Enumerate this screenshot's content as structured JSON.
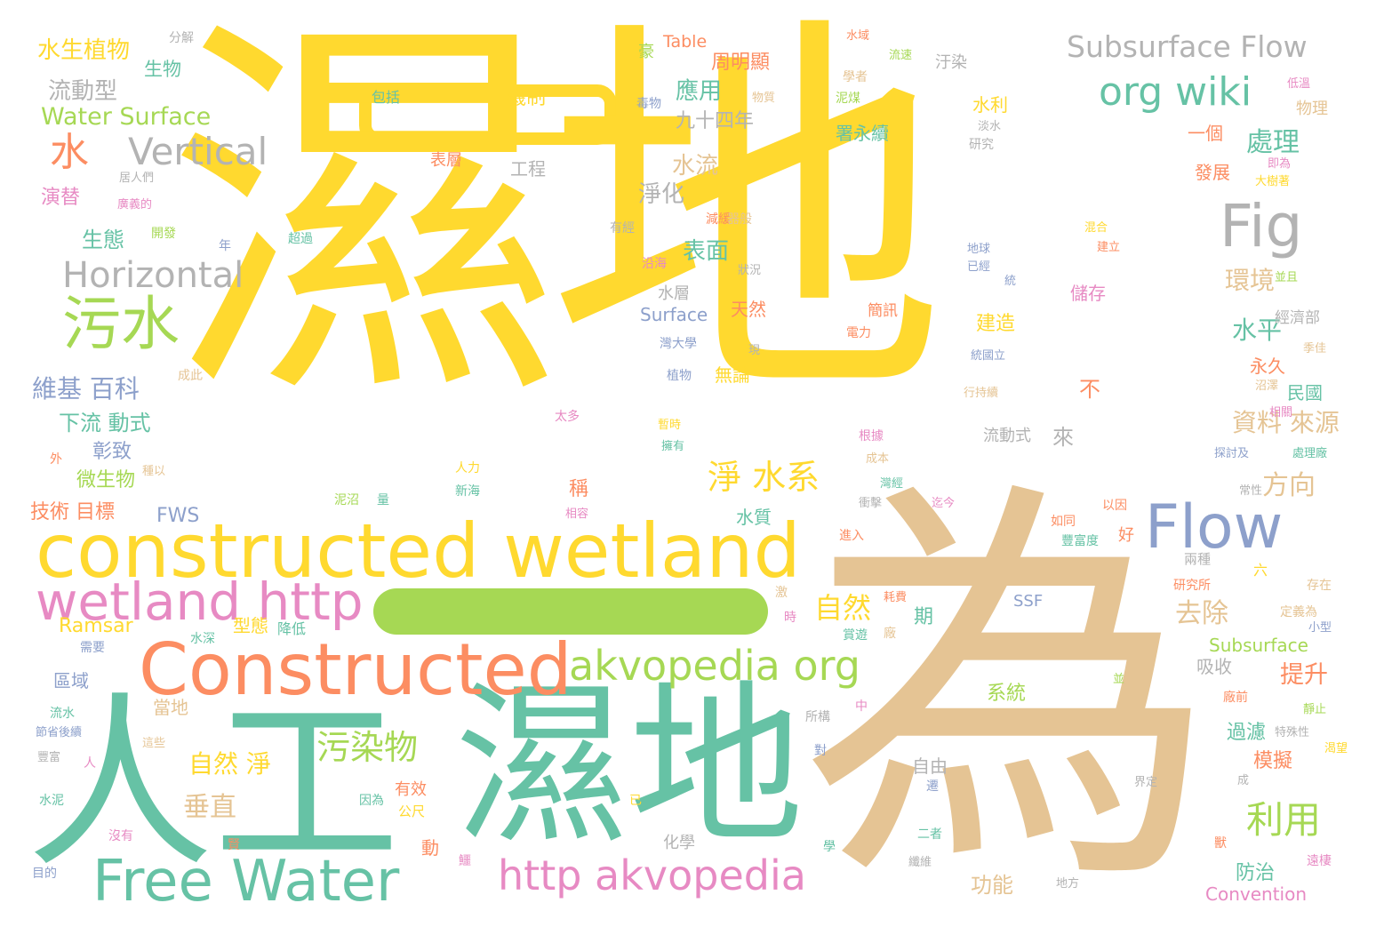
{
  "words": [
    {
      "text": "濕地",
      "color": "#ffd92f"
    },
    {
      "text": "為",
      "color": "#e5c494"
    },
    {
      "text": "人工",
      "color": "#66c2a5"
    },
    {
      "text": "濕地",
      "color": "#66c2a5"
    },
    {
      "text": "constructed wetland",
      "color": "#ffd92f"
    },
    {
      "text": "Constructed",
      "color": "#fc8d62"
    },
    {
      "text": "Free Water",
      "color": "#66c2a5"
    },
    {
      "text": "wetland http",
      "color": "#e78ac3"
    },
    {
      "text": "akvopedia org",
      "color": "#a6d854"
    },
    {
      "text": "http akvopedia",
      "color": "#e78ac3"
    },
    {
      "text": "Flow",
      "color": "#8da0cb"
    },
    {
      "text": "Fig",
      "color": "#b3b3b3"
    },
    {
      "text": "org wiki",
      "color": "#66c2a5"
    },
    {
      "text": "Subsurface Flow",
      "color": "#b3b3b3"
    },
    {
      "text": "污水",
      "color": "#a6d854"
    },
    {
      "text": "Vertical",
      "color": "#b3b3b3"
    },
    {
      "text": "Horizontal",
      "color": "#b3b3b3"
    },
    {
      "text": "水",
      "color": "#fc8d62"
    },
    {
      "text": "Water Surface",
      "color": "#a6d854"
    },
    {
      "text": "水生植物",
      "color": "#ffd92f"
    },
    {
      "text": "流動型",
      "color": "#b3b3b3"
    },
    {
      "text": "生物",
      "color": "#66c2a5"
    },
    {
      "text": "分解",
      "color": "#b3b3b3"
    },
    {
      "text": "維基 百科",
      "color": "#8da0cb"
    },
    {
      "text": "淨 水系",
      "color": "#ffd92f"
    },
    {
      "text": "污染物",
      "color": "#a6d854"
    },
    {
      "text": "自然 淨",
      "color": "#ffd92f"
    },
    {
      "text": "垂直",
      "color": "#e5c494"
    },
    {
      "text": "利用",
      "color": "#a6d854"
    },
    {
      "text": "自然",
      "color": "#ffd92f"
    },
    {
      "text": "方向",
      "color": "#e5c494"
    },
    {
      "text": "處理",
      "color": "#66c2a5"
    },
    {
      "text": "環境",
      "color": "#e5c494"
    },
    {
      "text": "水平",
      "color": "#66c2a5"
    },
    {
      "text": "去除",
      "color": "#e5c494"
    },
    {
      "text": "資料 來源",
      "color": "#e5c494"
    },
    {
      "text": "應用",
      "color": "#66c2a5"
    },
    {
      "text": "表面",
      "color": "#66c2a5"
    },
    {
      "text": "水流",
      "color": "#e5c494"
    },
    {
      "text": "淨化",
      "color": "#b3b3b3"
    },
    {
      "text": "生態",
      "color": "#66c2a5"
    },
    {
      "text": "下流 動式",
      "color": "#66c2a5"
    },
    {
      "text": "提升",
      "color": "#fc8d62"
    },
    {
      "text": "模擬",
      "color": "#fc8d62"
    },
    {
      "text": "過濾",
      "color": "#66c2a5"
    },
    {
      "text": "防治",
      "color": "#66c2a5"
    },
    {
      "text": "功能",
      "color": "#e5c494"
    },
    {
      "text": "系統",
      "color": "#a6d854"
    },
    {
      "text": "演替",
      "color": "#e78ac3"
    },
    {
      "text": "Table",
      "color": "#fc8d62"
    },
    {
      "text": "周明顯",
      "color": "#fc8d62"
    },
    {
      "text": "九十四年",
      "color": "#b3b3b3"
    },
    {
      "text": "機制",
      "color": "#ffd92f"
    },
    {
      "text": "包括",
      "color": "#66c2a5"
    },
    {
      "text": "表層",
      "color": "#fc8d62"
    },
    {
      "text": "工程",
      "color": "#b3b3b3"
    },
    {
      "text": "水利",
      "color": "#ffd92f"
    },
    {
      "text": "署永續",
      "color": "#66c2a5"
    },
    {
      "text": "一個",
      "color": "#fc8d62"
    },
    {
      "text": "發展",
      "color": "#fc8d62"
    },
    {
      "text": "Surface",
      "color": "#8da0cb"
    },
    {
      "text": "天然",
      "color": "#fc8d62"
    },
    {
      "text": "建造",
      "color": "#ffd92f"
    },
    {
      "text": "永久",
      "color": "#fc8d62"
    },
    {
      "text": "民國",
      "color": "#66c2a5"
    },
    {
      "text": "不",
      "color": "#fc8d62"
    },
    {
      "text": "來",
      "color": "#b3b3b3"
    },
    {
      "text": "稱",
      "color": "#fc8d62"
    },
    {
      "text": "微生物",
      "color": "#a6d854"
    },
    {
      "text": "彰致",
      "color": "#8da0cb"
    },
    {
      "text": "技術 目標",
      "color": "#fc8d62"
    },
    {
      "text": "FWS",
      "color": "#8da0cb"
    },
    {
      "text": "Ramsar",
      "color": "#ffd92f"
    },
    {
      "text": "型態",
      "color": "#ffd92f"
    },
    {
      "text": "降低",
      "color": "#66c2a5"
    },
    {
      "text": "區域",
      "color": "#8da0cb"
    },
    {
      "text": "當地",
      "color": "#e5c494"
    },
    {
      "text": "有效",
      "color": "#fc8d62"
    },
    {
      "text": "公尺",
      "color": "#ffd92f"
    },
    {
      "text": "動",
      "color": "#fc8d62"
    },
    {
      "text": "化學",
      "color": "#b3b3b3"
    },
    {
      "text": "期",
      "color": "#66c2a5"
    },
    {
      "text": "SSF",
      "color": "#8da0cb"
    },
    {
      "text": "Subsurface",
      "color": "#a6d854"
    },
    {
      "text": "吸收",
      "color": "#b3b3b3"
    },
    {
      "text": "Convention",
      "color": "#e78ac3"
    },
    {
      "text": "水質",
      "color": "#66c2a5"
    },
    {
      "text": "無論",
      "color": "#ffd92f"
    },
    {
      "text": "自由",
      "color": "#b3b3b3"
    },
    {
      "text": "儲存",
      "color": "#e78ac3"
    },
    {
      "text": "簡訊",
      "color": "#fc8d62"
    },
    {
      "text": "水層",
      "color": "#b3b3b3"
    },
    {
      "text": "流動式",
      "color": "#b3b3b3"
    },
    {
      "text": "經濟部",
      "color": "#b3b3b3"
    },
    {
      "text": "物理",
      "color": "#e5c494"
    },
    {
      "text": "汙染",
      "color": "#b3b3b3"
    },
    {
      "text": "豪",
      "color": "#a6d854"
    },
    {
      "text": "毒物",
      "color": "#8da0cb"
    },
    {
      "text": "研究",
      "color": "#b3b3b3"
    },
    {
      "text": "居人們",
      "color": "#b3b3b3"
    },
    {
      "text": "開發",
      "color": "#a6d854"
    },
    {
      "text": "年",
      "color": "#8da0cb"
    },
    {
      "text": "超過",
      "color": "#66c2a5"
    },
    {
      "text": "廣義的",
      "color": "#e78ac3"
    },
    {
      "text": "有經",
      "color": "#b3b3b3"
    },
    {
      "text": "減緩",
      "color": "#fc8d62"
    },
    {
      "text": "沿海",
      "color": "#e78ac3"
    },
    {
      "text": "植物",
      "color": "#8da0cb"
    },
    {
      "text": "太多",
      "color": "#e78ac3"
    },
    {
      "text": "成此",
      "color": "#e5c494"
    },
    {
      "text": "外",
      "color": "#fc8d62"
    },
    {
      "text": "需要",
      "color": "#8da0cb"
    },
    {
      "text": "水泥",
      "color": "#66c2a5"
    },
    {
      "text": "因為",
      "color": "#66c2a5"
    },
    {
      "text": "沒有",
      "color": "#e78ac3"
    },
    {
      "text": "目的",
      "color": "#8da0cb"
    },
    {
      "text": "節省後續",
      "color": "#8da0cb"
    },
    {
      "text": "豐富",
      "color": "#b3b3b3"
    },
    {
      "text": "人",
      "color": "#e78ac3"
    },
    {
      "text": "流水",
      "color": "#66c2a5"
    },
    {
      "text": "這些",
      "color": "#e5c494"
    },
    {
      "text": "六",
      "color": "#ffd92f"
    },
    {
      "text": "研究所",
      "color": "#fc8d62"
    },
    {
      "text": "存在",
      "color": "#e5c494"
    },
    {
      "text": "定義為",
      "color": "#e5c494"
    },
    {
      "text": "小型",
      "color": "#8da0cb"
    },
    {
      "text": "以因",
      "color": "#fc8d62"
    },
    {
      "text": "如同",
      "color": "#fc8d62"
    },
    {
      "text": "豐富度",
      "color": "#66c2a5"
    },
    {
      "text": "好",
      "color": "#fc8d62"
    },
    {
      "text": "兩種",
      "color": "#b3b3b3"
    },
    {
      "text": "探討及",
      "color": "#8da0cb"
    },
    {
      "text": "處理廠",
      "color": "#66c2a5"
    },
    {
      "text": "常性",
      "color": "#b3b3b3"
    },
    {
      "text": "靜止",
      "color": "#a6d854"
    },
    {
      "text": "特殊性",
      "color": "#b3b3b3"
    },
    {
      "text": "渴望",
      "color": "#ffd92f"
    },
    {
      "text": "成",
      "color": "#b3b3b3"
    },
    {
      "text": "廠前",
      "color": "#fc8d62"
    },
    {
      "text": "並",
      "color": "#a6d854"
    },
    {
      "text": "遠棲",
      "color": "#e78ac3"
    },
    {
      "text": "水域",
      "color": "#fc8d62"
    },
    {
      "text": "流速",
      "color": "#a6d854"
    },
    {
      "text": "學者",
      "color": "#e5c494"
    },
    {
      "text": "物質",
      "color": "#e5c494"
    },
    {
      "text": "泥煤",
      "color": "#a6d854"
    },
    {
      "text": "淡水",
      "color": "#b3b3b3"
    },
    {
      "text": "低溫",
      "color": "#e78ac3"
    },
    {
      "text": "即為",
      "color": "#e78ac3"
    },
    {
      "text": "大樹著",
      "color": "#ffd92f"
    },
    {
      "text": "混合",
      "color": "#ffd92f"
    },
    {
      "text": "建立",
      "color": "#fc8d62"
    },
    {
      "text": "地球",
      "color": "#8da0cb"
    },
    {
      "text": "已經",
      "color": "#8da0cb"
    },
    {
      "text": "統",
      "color": "#8da0cb"
    },
    {
      "text": "並且",
      "color": "#a6d854"
    },
    {
      "text": "季佳",
      "color": "#e5c494"
    },
    {
      "text": "沼澤",
      "color": "#e5c494"
    },
    {
      "text": "相關",
      "color": "#e78ac3"
    },
    {
      "text": "行持續",
      "color": "#e5c494"
    },
    {
      "text": "統國立",
      "color": "#8da0cb"
    },
    {
      "text": "電力",
      "color": "#fc8d62"
    },
    {
      "text": "灣大學",
      "color": "#8da0cb"
    },
    {
      "text": "現",
      "color": "#b3b3b3"
    },
    {
      "text": "狀況",
      "color": "#b3b3b3"
    },
    {
      "text": "暫時",
      "color": "#ffd92f"
    },
    {
      "text": "擁有",
      "color": "#66c2a5"
    },
    {
      "text": "根據",
      "color": "#e78ac3"
    },
    {
      "text": "成本",
      "color": "#e5c494"
    },
    {
      "text": "灣經",
      "color": "#66c2a5"
    },
    {
      "text": "迄今",
      "color": "#e78ac3"
    },
    {
      "text": "衝擊",
      "color": "#b3b3b3"
    },
    {
      "text": "進入",
      "color": "#fc8d62"
    },
    {
      "text": "耗費",
      "color": "#fc8d62"
    },
    {
      "text": "廠",
      "color": "#e5c494"
    },
    {
      "text": "賞遊",
      "color": "#66c2a5"
    },
    {
      "text": "所構",
      "color": "#b3b3b3"
    },
    {
      "text": "中",
      "color": "#e78ac3"
    },
    {
      "text": "對",
      "color": "#8da0cb"
    },
    {
      "text": "遷",
      "color": "#8da0cb"
    },
    {
      "text": "界定",
      "color": "#b3b3b3"
    },
    {
      "text": "二者",
      "color": "#66c2a5"
    },
    {
      "text": "纖維",
      "color": "#b3b3b3"
    },
    {
      "text": "地方",
      "color": "#b3b3b3"
    },
    {
      "text": "學",
      "color": "#66c2a5"
    },
    {
      "text": "已",
      "color": "#ffd92f"
    },
    {
      "text": "新海",
      "color": "#66c2a5"
    },
    {
      "text": "人力",
      "color": "#ffd92f"
    },
    {
      "text": "泥沼",
      "color": "#a6d854"
    },
    {
      "text": "量",
      "color": "#66c2a5"
    },
    {
      "text": "相容",
      "color": "#e78ac3"
    },
    {
      "text": "時",
      "color": "#e78ac3"
    },
    {
      "text": "激",
      "color": "#e5c494"
    },
    {
      "text": "水深",
      "color": "#66c2a5"
    },
    {
      "text": "種以",
      "color": "#e5c494"
    },
    {
      "text": "器般",
      "color": "#e5c494"
    },
    {
      "text": "夠",
      "color": "#66c2a5"
    },
    {
      "text": "賢",
      "color": "#fc8d62"
    },
    {
      "text": "鱷",
      "color": "#e78ac3"
    },
    {
      "text": "獸",
      "color": "#fc8d62"
    }
  ]
}
